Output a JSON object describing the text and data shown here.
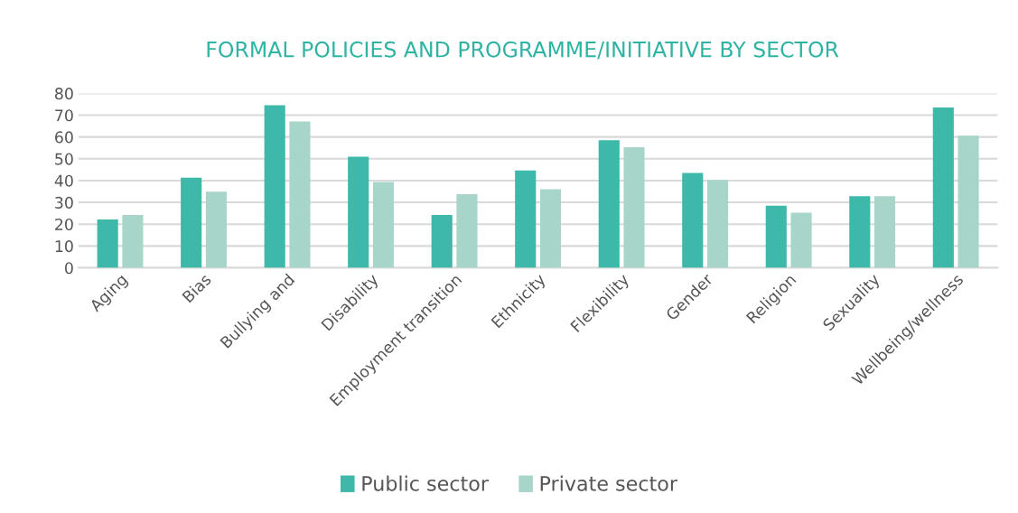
{
  "chart_data": {
    "type": "bar",
    "title": "FORMAL POLICIES AND PROGRAMME/INITIATIVE BY SECTOR",
    "categories": [
      "Aging",
      "Bias",
      "Bullying and",
      "Disability",
      "Employment transition",
      "Ethnicity",
      "Flexibility",
      "Gender",
      "Religion",
      "Sexuality",
      "Wellbeing/wellness"
    ],
    "series": [
      {
        "name": "Public sector",
        "color": "#3db8a9",
        "values": [
          22.2,
          41.3,
          74.6,
          51,
          24.2,
          44.6,
          58.5,
          43.5,
          28.5,
          32.8,
          73.5
        ]
      },
      {
        "name": "Private sector",
        "color": "#a8d5c9",
        "values": [
          24.2,
          34.9,
          67.1,
          39.4,
          33.8,
          36,
          55.3,
          40.3,
          25.3,
          32.8,
          60.6
        ]
      }
    ],
    "ylim": [
      0,
      80
    ],
    "yticks": [
      0,
      10,
      20,
      30,
      40,
      50,
      60,
      70,
      80
    ],
    "grid": "y",
    "legend": "bottom"
  }
}
